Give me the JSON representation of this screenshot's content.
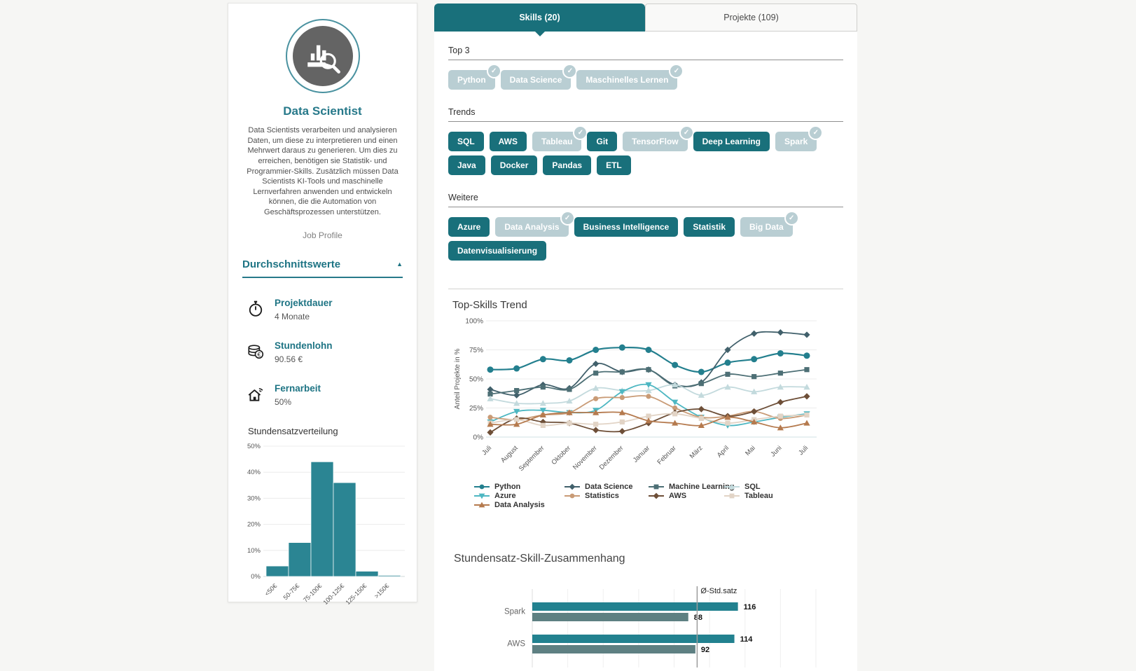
{
  "colors": {
    "accent": "#19707b",
    "chip_light": "#b9ced3",
    "header_teal": "#1e7484"
  },
  "profile_card": {
    "title": "Data Scientist",
    "description": "Data Scientists verarbeiten und analysieren Daten, um diese zu interpretieren und einen Mehrwert daraus zu generieren. Um dies zu erreichen, benötigen sie Statistik- und Programmier-Skills. Zusätzlich müssen Data Scientists KI-Tools und maschinelle Lernverfahren anwenden und entwickeln können, die die Automation von Geschäftsprozessen unterstützen.",
    "subtitle": "Job Profile",
    "averages": {
      "heading": "Durchschnittswerte",
      "collapse_icon": "▲",
      "items": [
        {
          "icon": "stopwatch-icon",
          "label": "Projektdauer",
          "value": "4 Monate"
        },
        {
          "icon": "coins-icon",
          "label": "Stundenlohn",
          "value": "90.56 €"
        },
        {
          "icon": "home-wifi-icon",
          "label": "Fernarbeit",
          "value": "50%"
        }
      ]
    }
  },
  "tabs": [
    {
      "label": "Skills (20)",
      "active": true
    },
    {
      "label": "Projekte (109)",
      "active": false
    }
  ],
  "skills": {
    "sections": [
      {
        "title": "Top 3",
        "chips": [
          {
            "label": "Python",
            "checked": true
          },
          {
            "label": "Data Science",
            "checked": true
          },
          {
            "label": "Maschinelles Lernen",
            "checked": true
          }
        ]
      },
      {
        "title": "Trends",
        "chips": [
          {
            "label": "SQL",
            "checked": false
          },
          {
            "label": "AWS",
            "checked": false
          },
          {
            "label": "Tableau",
            "checked": true
          },
          {
            "label": "Git",
            "checked": false
          },
          {
            "label": "TensorFlow",
            "checked": true
          },
          {
            "label": "Deep Learning",
            "checked": false
          },
          {
            "label": "Spark",
            "checked": true
          },
          {
            "label": "Java",
            "checked": false
          },
          {
            "label": "Docker",
            "checked": false
          },
          {
            "label": "Pandas",
            "checked": false
          },
          {
            "label": "ETL",
            "checked": false
          }
        ]
      },
      {
        "title": "Weitere",
        "chips": [
          {
            "label": "Azure",
            "checked": false
          },
          {
            "label": "Data Analysis",
            "checked": true
          },
          {
            "label": "Business Intelligence",
            "checked": false
          },
          {
            "label": "Statistik",
            "checked": false
          },
          {
            "label": "Big Data",
            "checked": true
          },
          {
            "label": "Datenvisualisierung",
            "checked": false
          }
        ]
      }
    ]
  },
  "chart_data": [
    {
      "id": "stundensatzverteilung",
      "type": "bar",
      "title": "Stundensatzverteilung",
      "categories": [
        "<50€",
        "50-75€",
        "75-100€",
        "100-125€",
        "125-150€",
        ">150€"
      ],
      "values": [
        4,
        13,
        44,
        36,
        2,
        0.4
      ],
      "ylim": [
        0,
        50
      ],
      "yticks": [
        0,
        10,
        20,
        30,
        40,
        50
      ],
      "bar_color": "#2b8593",
      "grid": true
    },
    {
      "id": "top_skills_trend",
      "type": "line",
      "title": "Top-Skills Trend",
      "ylabel": "Anteil Projekte in %",
      "ylim": [
        0,
        100
      ],
      "yticks": [
        0,
        25,
        50,
        75,
        100
      ],
      "x": [
        "Juli",
        "August",
        "September",
        "Oktober",
        "November",
        "Dezember",
        "Januar",
        "Februar",
        "März",
        "April",
        "Mai",
        "Juni",
        "Juli"
      ],
      "legend_position": "bottom",
      "grid": true,
      "series": [
        {
          "name": "Python",
          "color": "#237f8e",
          "marker": "circle",
          "size": 4.5,
          "values": [
            58,
            59,
            67,
            66,
            75,
            77,
            75,
            62,
            56,
            64,
            67,
            72,
            70
          ]
        },
        {
          "name": "Data Science",
          "color": "#41606b",
          "marker": "diamond",
          "size": 3.6,
          "values": [
            41,
            36,
            45,
            42,
            63,
            56,
            58,
            45,
            47,
            75,
            89,
            90,
            88
          ]
        },
        {
          "name": "Machine Learning",
          "color": "#4d6f75",
          "marker": "square",
          "size": 3.6,
          "values": [
            37,
            40,
            43,
            41,
            55,
            56,
            58,
            44,
            46,
            54,
            52,
            55,
            58
          ]
        },
        {
          "name": "SQL",
          "color": "#c3dadd",
          "marker": "triangle-up",
          "size": 3.6,
          "values": [
            33,
            29,
            29,
            31,
            42,
            40,
            40,
            45,
            36,
            43,
            39,
            43,
            43
          ]
        },
        {
          "name": "Azure",
          "color": "#4db7c2",
          "marker": "triangle-down",
          "size": 3.6,
          "values": [
            13,
            22,
            23,
            21,
            23,
            39,
            45,
            30,
            17,
            10,
            13,
            17,
            20
          ]
        },
        {
          "name": "Statistics",
          "color": "#c99b76",
          "marker": "circle",
          "size": 3.6,
          "values": [
            17,
            15,
            19,
            21,
            33,
            34,
            35,
            25,
            17,
            18,
            22,
            16,
            19
          ]
        },
        {
          "name": "AWS",
          "color": "#6e4f38",
          "marker": "diamond",
          "size": 3.6,
          "values": [
            4,
            16,
            13,
            12,
            6,
            5,
            12,
            21,
            24,
            18,
            22,
            30,
            35
          ]
        },
        {
          "name": "Tableau",
          "color": "#e2d4c6",
          "marker": "square",
          "size": 3.6,
          "values": [
            12,
            15,
            10,
            12,
            11,
            13,
            18,
            20,
            16,
            12,
            15,
            18,
            19
          ]
        },
        {
          "name": "Data Analysis",
          "color": "#b57a4e",
          "marker": "triangle-up",
          "size": 3.6,
          "values": [
            11,
            11,
            19,
            21,
            21,
            21,
            14,
            12,
            10,
            17,
            13,
            8,
            12
          ]
        }
      ]
    },
    {
      "id": "stundensatz_skill",
      "type": "hbar",
      "title": "Stundensatz-Skill-Zusammenhang",
      "categories": [
        "Spark",
        "AWS"
      ],
      "series": [
        {
          "color": "#22818f",
          "values": [
            116,
            114
          ]
        },
        {
          "color": "#5e8082",
          "values": [
            88,
            92
          ]
        }
      ],
      "xlim": [
        0,
        160
      ],
      "xtick_step": 20,
      "reference": {
        "label": "Ø-Std.satz",
        "value": 93
      },
      "grid": true
    }
  ]
}
